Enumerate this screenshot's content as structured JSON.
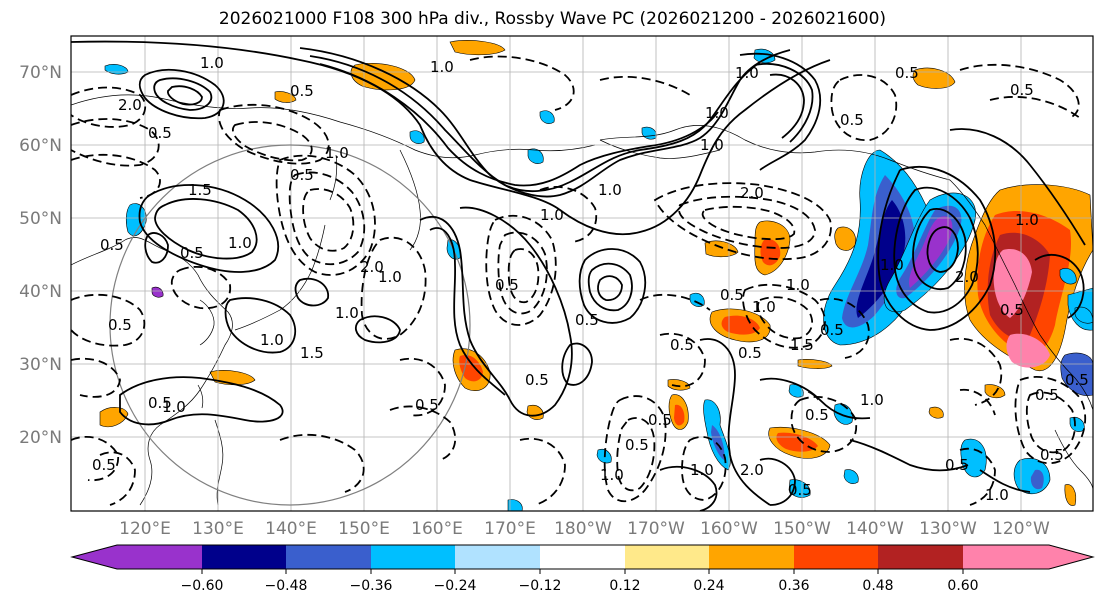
{
  "title": "2026021000 F108 300 hPa div., Rossby Wave PC (2026021200 - 2026021600)",
  "map": {
    "lat_ticks": [
      "70°N",
      "60°N",
      "50°N",
      "40°N",
      "30°N",
      "20°N"
    ],
    "lon_ticks": [
      "120°E",
      "130°E",
      "140°E",
      "150°E",
      "160°E",
      "170°E",
      "180°W",
      "170°W",
      "160°W",
      "150°W",
      "140°W",
      "130°W",
      "120°W"
    ],
    "contour_labels": [
      "1.0",
      "0.5",
      "2.0",
      "1.0",
      "0.5",
      "1.0",
      "1.5",
      "1.0",
      "2.0",
      "0.5",
      "1.0",
      "0.5",
      "0.5",
      "1.0",
      "1.0",
      "1.0",
      "0.5",
      "1.5",
      "1.0",
      "0.5",
      "0.5",
      "0.5",
      "2.0",
      "1.0",
      "1.0",
      "0.5",
      "1.0",
      "1.0",
      "1.5",
      "2.0",
      "0.5",
      "1.0",
      "0.5",
      "0.5",
      "1.0",
      "0.5",
      "1.0",
      "0.5",
      "0.5",
      "2.0",
      "0.5",
      "1.0",
      "0.5",
      "0.5",
      "0.5",
      "1.0",
      "0.5",
      "0.5",
      "0.5",
      "1.0",
      "0.5",
      "0.5",
      "0.5",
      "0.5",
      "0.5",
      "1.0",
      "1.0"
    ]
  },
  "colorbar": {
    "tick_labels": [
      "−0.60",
      "−0.48",
      "−0.36",
      "−0.24",
      "−0.12",
      "0.12",
      "0.24",
      "0.36",
      "0.48",
      "0.60"
    ],
    "colors": [
      "#9932cc",
      "#00008b",
      "#3a5fcd",
      "#00bfff",
      "#b0e2ff",
      "#ffffff",
      "#ffe98a",
      "#ffa500",
      "#ff4500",
      "#b22222",
      "#ff82ab",
      "#ff82ab"
    ]
  }
}
